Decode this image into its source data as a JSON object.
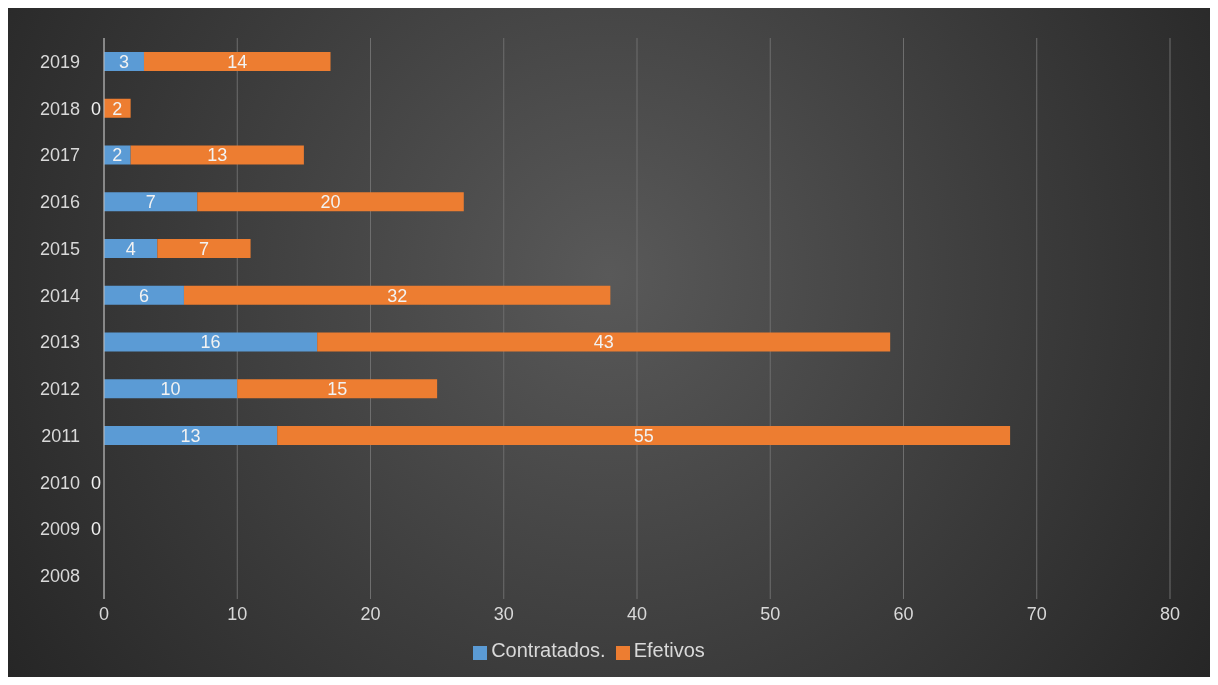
{
  "chart_data": {
    "type": "bar",
    "orientation": "horizontal",
    "stacked": true,
    "categories": [
      "2019",
      "2018",
      "2017",
      "2016",
      "2015",
      "2014",
      "2013",
      "2012",
      "2011",
      "2010",
      "2009",
      "2008"
    ],
    "series": [
      {
        "name": "Contratados.",
        "color": "#5b9bd5",
        "values": [
          3,
          0,
          2,
          7,
          4,
          6,
          16,
          10,
          13,
          0,
          0,
          null
        ],
        "value_labels": [
          "3",
          "0",
          "2",
          "7",
          "4",
          "6",
          "16",
          "10",
          "13",
          null,
          null,
          null
        ]
      },
      {
        "name": "Efetivos",
        "color": "#ed7d31",
        "values": [
          14,
          2,
          13,
          20,
          7,
          32,
          43,
          15,
          55,
          0,
          0,
          null
        ],
        "value_labels": [
          "14",
          "2",
          "13",
          "20",
          "7",
          "32",
          "43",
          "15",
          "55",
          "0",
          "0",
          null
        ]
      }
    ],
    "xlim": [
      0,
      80
    ],
    "xticks": [
      0,
      10,
      20,
      30,
      40,
      50,
      60,
      70,
      80
    ],
    "grid": "x",
    "legend": "bottom"
  }
}
